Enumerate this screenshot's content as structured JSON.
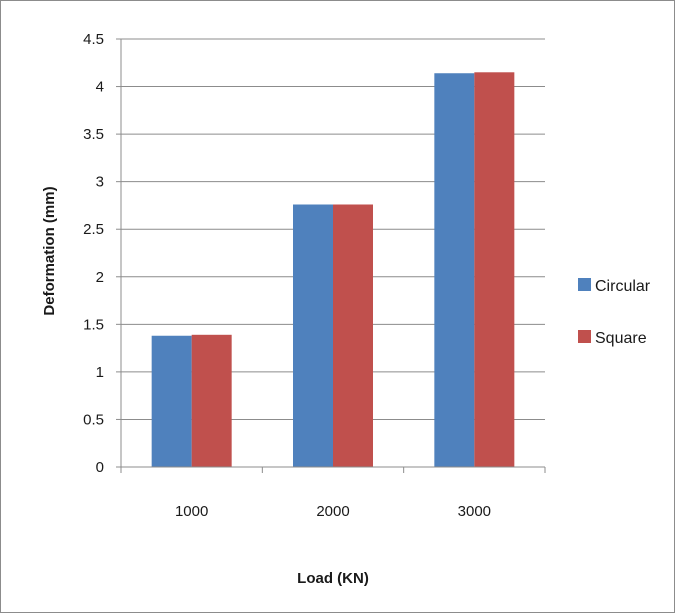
{
  "chart_data": {
    "type": "bar",
    "categories": [
      "1000",
      "2000",
      "3000"
    ],
    "series": [
      {
        "name": "Circular",
        "values": [
          1.38,
          2.76,
          4.14
        ],
        "color": "#4F81BD"
      },
      {
        "name": "Square",
        "values": [
          1.39,
          2.76,
          4.15
        ],
        "color": "#C0504D"
      }
    ],
    "xlabel": "Load (KN)",
    "ylabel": "Deformation (mm)",
    "ylim": [
      0,
      4.5
    ],
    "yticks": [
      "0",
      "0.5",
      "1",
      "1.5",
      "2",
      "2.5",
      "3",
      "3.5",
      "4",
      "4.5"
    ],
    "grid": true,
    "legend": "right"
  }
}
